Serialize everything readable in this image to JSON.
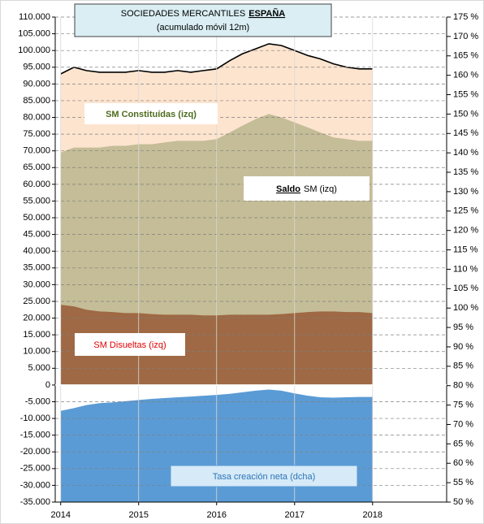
{
  "chart_data": {
    "type": "area",
    "title": "SOCIEDADES MERCANTILES",
    "title_emphasis": "ESPAÑA",
    "subtitle": "(acumulado móvil 12m)",
    "x": [
      2014,
      2014.17,
      2014.33,
      2014.5,
      2014.67,
      2014.83,
      2015,
      2015.17,
      2015.33,
      2015.5,
      2015.67,
      2015.83,
      2016,
      2016.17,
      2016.33,
      2016.5,
      2016.67,
      2016.83,
      2017,
      2017.17,
      2017.33,
      2017.5,
      2017.67,
      2017.83,
      2018
    ],
    "series": [
      {
        "name": "SM Constituídas (izq)",
        "color": "#fde4cf",
        "line_color": "#000000",
        "label_color": "#4f6b1e",
        "values": [
          93000,
          95000,
          94000,
          93500,
          93500,
          93500,
          94000,
          93500,
          93500,
          94000,
          93500,
          94000,
          94500,
          97000,
          99000,
          100500,
          102000,
          101500,
          100000,
          98500,
          97500,
          96000,
          95000,
          94500,
          94500
        ]
      },
      {
        "name_emphasis": "Saldo",
        "name_rest": "SM (izq)",
        "color": "#c4bd97",
        "label_color": "#000000",
        "values": [
          69500,
          71000,
          71000,
          71000,
          71500,
          71500,
          72000,
          72000,
          72500,
          73000,
          73000,
          73000,
          73500,
          75500,
          77500,
          79500,
          81000,
          80000,
          78500,
          77000,
          75500,
          74000,
          73500,
          73000,
          73000
        ]
      },
      {
        "name": "SM Disueltas (izq)",
        "color": "#9e6944",
        "label_color": "#e00000",
        "values": [
          24000,
          23500,
          22500,
          22000,
          21800,
          21500,
          21500,
          21200,
          21000,
          21000,
          21000,
          20800,
          20800,
          21000,
          21000,
          21000,
          21000,
          21200,
          21500,
          21800,
          22000,
          22000,
          21800,
          21800,
          21500
        ]
      },
      {
        "name": "Tasa creación neta (dcha)",
        "color": "#5b9bd5",
        "label_color": "#2e75b6",
        "axis": "y2",
        "values": [
          73.5,
          74.2,
          75.0,
          75.5,
          75.7,
          76.0,
          76.3,
          76.6,
          76.8,
          77.0,
          77.2,
          77.4,
          77.6,
          77.9,
          78.3,
          78.7,
          79.0,
          78.7,
          78.0,
          77.4,
          77.0,
          76.9,
          77.0,
          77.1,
          77.1
        ]
      }
    ],
    "xlim": [
      2013.93,
      2018.95
    ],
    "xticks": [
      2014,
      2015,
      2016,
      2017,
      2018
    ],
    "ylim": [
      -35000,
      110000
    ],
    "yticks": [
      {
        "value": 110000,
        "label": "110.000"
      },
      {
        "value": 105000,
        "label": "105.000"
      },
      {
        "value": 100000,
        "label": "100.000"
      },
      {
        "value": 95000,
        "label": "95.000"
      },
      {
        "value": 90000,
        "label": "90.000"
      },
      {
        "value": 85000,
        "label": "85.000"
      },
      {
        "value": 80000,
        "label": "80.000"
      },
      {
        "value": 75000,
        "label": "75.000"
      },
      {
        "value": 70000,
        "label": "70.000"
      },
      {
        "value": 65000,
        "label": "65.000"
      },
      {
        "value": 60000,
        "label": "60.000"
      },
      {
        "value": 55000,
        "label": "55.000"
      },
      {
        "value": 50000,
        "label": "50.000"
      },
      {
        "value": 45000,
        "label": "45.000"
      },
      {
        "value": 40000,
        "label": "40.000"
      },
      {
        "value": 35000,
        "label": "35.000"
      },
      {
        "value": 30000,
        "label": "30.000"
      },
      {
        "value": 25000,
        "label": "25.000"
      },
      {
        "value": 20000,
        "label": "20.000"
      },
      {
        "value": 15000,
        "label": "15.000"
      },
      {
        "value": 10000,
        "label": "10.000"
      },
      {
        "value": 5000,
        "label": "5.000"
      },
      0,
      {
        "value": -5000,
        "label": "-5.000"
      },
      {
        "value": -10000,
        "label": "-10.000"
      },
      {
        "value": -15000,
        "label": "-15.000"
      },
      {
        "value": -20000,
        "label": "-20.000"
      },
      {
        "value": -25000,
        "label": "-25.000"
      },
      {
        "value": -30000,
        "label": "-30.000"
      },
      {
        "value": -35000,
        "label": "-35.000"
      }
    ],
    "y2lim": [
      50,
      175
    ],
    "y2ticks": [
      {
        "value": 175,
        "label": "175 %"
      },
      {
        "value": 170,
        "label": "170 %"
      },
      {
        "value": 165,
        "label": "165 %"
      },
      {
        "value": 160,
        "label": "160 %"
      },
      {
        "value": 155,
        "label": "155 %"
      },
      {
        "value": 150,
        "label": "150 %"
      },
      {
        "value": 145,
        "label": "145 %"
      },
      {
        "value": 140,
        "label": "140 %"
      },
      {
        "value": 135,
        "label": "135 %"
      },
      {
        "value": 130,
        "label": "130 %"
      },
      {
        "value": 125,
        "label": "125 %"
      },
      {
        "value": 120,
        "label": "120 %"
      },
      {
        "value": 115,
        "label": "115 %"
      },
      {
        "value": 110,
        "label": "110 %"
      },
      {
        "value": 105,
        "label": "105 %"
      },
      {
        "value": 100,
        "label": "100 %"
      },
      {
        "value": 95,
        "label": "95 %"
      },
      {
        "value": 90,
        "label": "90 %"
      },
      {
        "value": 85,
        "label": "85 %"
      },
      {
        "value": 80,
        "label": "80 %"
      },
      {
        "value": 75,
        "label": "75 %"
      },
      {
        "value": 70,
        "label": "70 %"
      },
      {
        "value": 65,
        "label": "65 %"
      },
      {
        "value": 60,
        "label": "60 %"
      },
      {
        "value": 55,
        "label": "55 %"
      },
      {
        "value": 50,
        "label": "50 %"
      }
    ],
    "grid": true
  }
}
